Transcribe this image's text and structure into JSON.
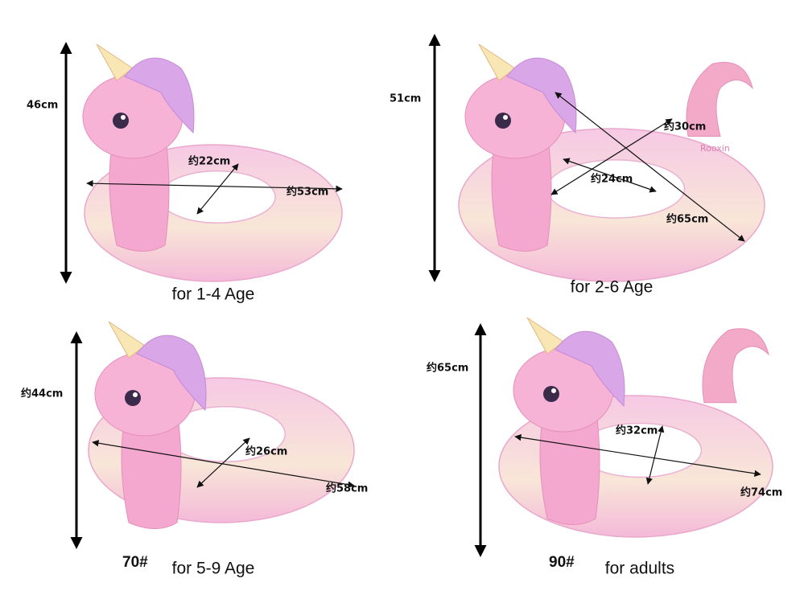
{
  "panels": [
    {
      "height": "46cm",
      "inner": "约22cm",
      "outer": "约53cm",
      "caption": "for 1-4 Age"
    },
    {
      "height": "51cm",
      "depth": "约30cm",
      "inner": "约24cm",
      "outer": "约65cm",
      "brand": "Rooxin",
      "caption": "for 2-6 Age"
    },
    {
      "height": "约44cm",
      "inner": "约26cm",
      "outer": "约58cm",
      "model": "70#",
      "caption": "for 5-9 Age"
    },
    {
      "height": "约65cm",
      "inner": "约32cm",
      "outer": "约74cm",
      "model": "90#",
      "caption": "for adults"
    }
  ]
}
